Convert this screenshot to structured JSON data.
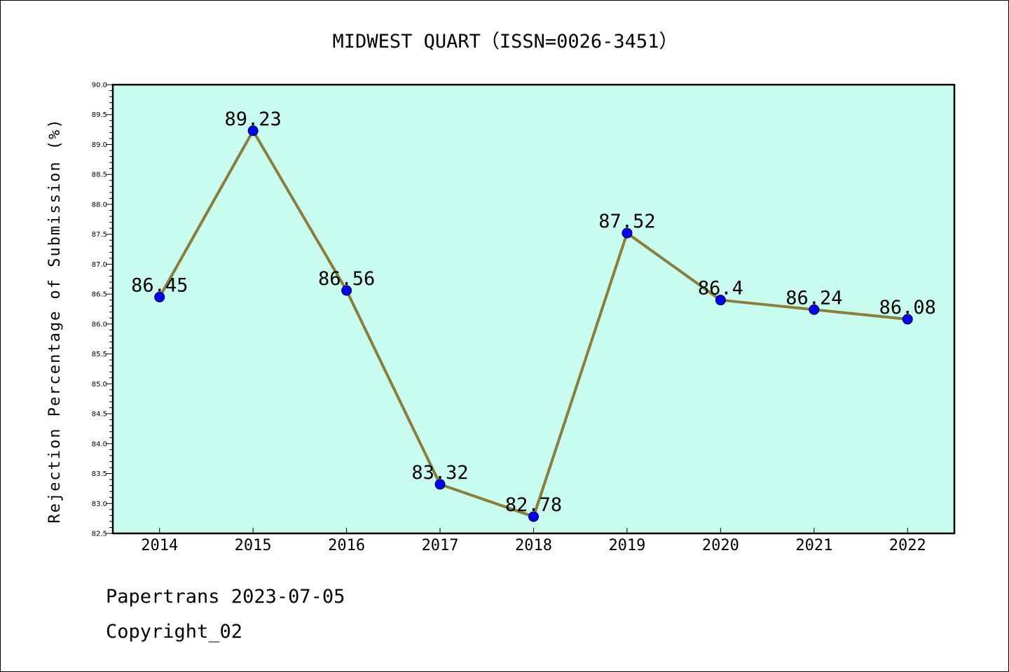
{
  "chart_data": {
    "type": "line",
    "title": "MIDWEST QUART（ISSN=0026-3451）",
    "xlabel": "",
    "ylabel": "Rejection Percentage of Submission (%)",
    "categories": [
      "2014",
      "2015",
      "2016",
      "2017",
      "2018",
      "2019",
      "2020",
      "2021",
      "2022"
    ],
    "values": [
      86.45,
      89.23,
      86.56,
      83.32,
      82.78,
      87.52,
      86.4,
      86.24,
      86.08
    ],
    "data_labels": [
      "86.45",
      "89.23",
      "86.56",
      "83.32",
      "82.78",
      "87.52",
      "86.4",
      "86.24",
      "86.08"
    ],
    "ylim": [
      82.5,
      90.0
    ],
    "yticks": [
      "82.5",
      "83.0",
      "83.5",
      "84.0",
      "84.5",
      "85.0",
      "85.5",
      "86.0",
      "86.5",
      "87.0",
      "87.5",
      "88.0",
      "88.5",
      "89.0",
      "89.5",
      "90.0"
    ],
    "grid": false,
    "legend": "none",
    "colors": {
      "plot_background": "#c8fcee",
      "line": "#8b7d3a",
      "marker": "#0000ff",
      "frame": "#000000"
    }
  },
  "footer": {
    "line1": "Papertrans 2023-07-05",
    "line2": "Copyright_02"
  }
}
